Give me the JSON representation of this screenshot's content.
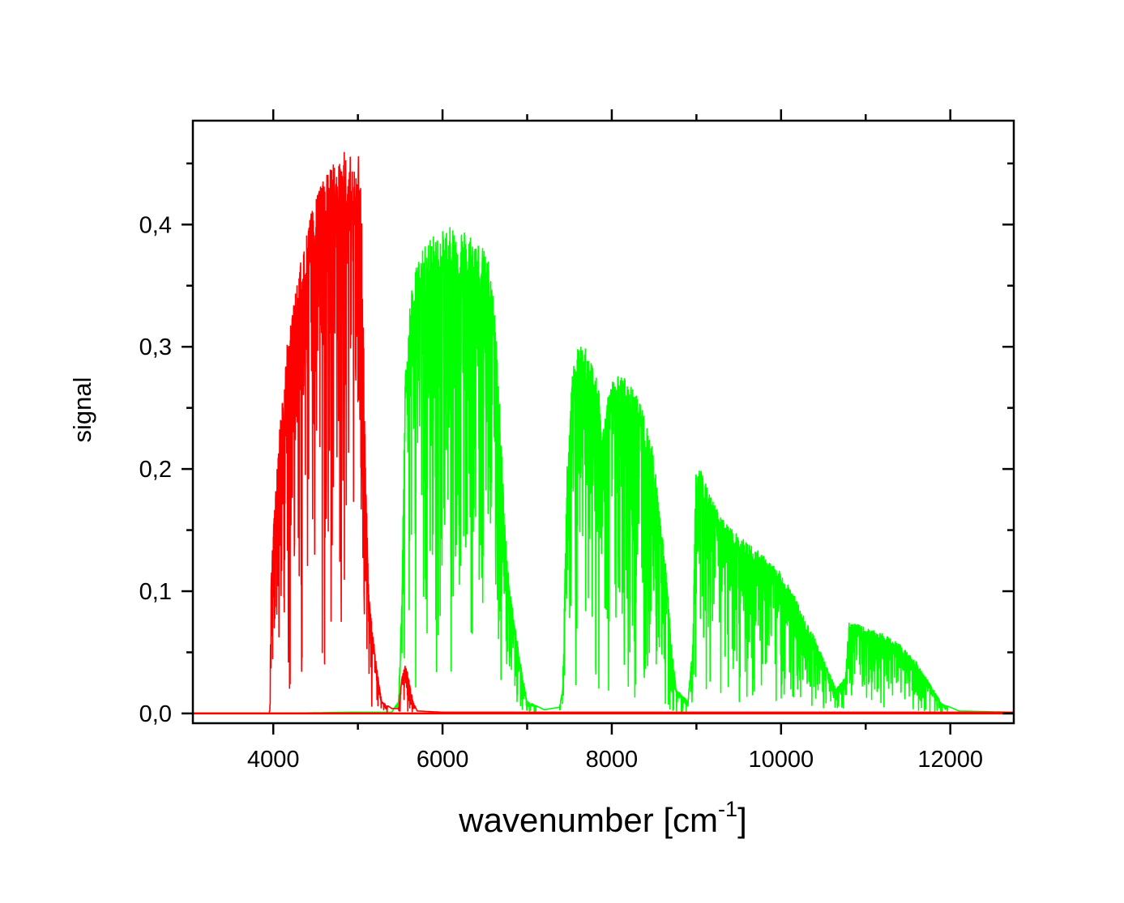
{
  "chart_data": {
    "type": "line",
    "xlabel": "wavenumber [cm",
    "xlabel_sup": "-1",
    "xlabel_close": "]",
    "ylabel": "signal",
    "xlim": [
      3050,
      12750
    ],
    "ylim": [
      -0.008,
      0.485
    ],
    "x_ticks": [
      4000,
      6000,
      8000,
      10000,
      12000
    ],
    "x_tick_labels": [
      "4000",
      "6000",
      "8000",
      "10000",
      "12000"
    ],
    "y_ticks": [
      0.0,
      0.1,
      0.2,
      0.3,
      0.4
    ],
    "y_tick_labels": [
      "0,0",
      "0,1",
      "0,2",
      "0,3",
      "0,4"
    ],
    "grid": false,
    "legend": "none",
    "series": [
      {
        "color": "#00ff00",
        "envelope": [
          [
            4000,
            0
          ],
          [
            4900,
            0.001
          ],
          [
            5400,
            0.001
          ],
          [
            5480,
            0.01
          ],
          [
            5520,
            0.1
          ],
          [
            5560,
            0.28
          ],
          [
            5620,
            0.34
          ],
          [
            5700,
            0.37
          ],
          [
            5850,
            0.39
          ],
          [
            6000,
            0.395
          ],
          [
            6150,
            0.4
          ],
          [
            6300,
            0.395
          ],
          [
            6450,
            0.385
          ],
          [
            6550,
            0.37
          ],
          [
            6620,
            0.33
          ],
          [
            6680,
            0.25
          ],
          [
            6740,
            0.15
          ],
          [
            6800,
            0.1
          ],
          [
            6900,
            0.05
          ],
          [
            7000,
            0.01
          ],
          [
            7200,
            0.003
          ],
          [
            7380,
            0.005
          ],
          [
            7420,
            0.02
          ],
          [
            7470,
            0.2
          ],
          [
            7540,
            0.285
          ],
          [
            7600,
            0.3
          ],
          [
            7700,
            0.3
          ],
          [
            7780,
            0.285
          ],
          [
            7850,
            0.265
          ],
          [
            7880,
            0.23
          ],
          [
            7920,
            0.25
          ],
          [
            7980,
            0.27
          ],
          [
            8050,
            0.277
          ],
          [
            8150,
            0.275
          ],
          [
            8300,
            0.26
          ],
          [
            8400,
            0.24
          ],
          [
            8480,
            0.22
          ],
          [
            8560,
            0.17
          ],
          [
            8640,
            0.12
          ],
          [
            8700,
            0.06
          ],
          [
            8760,
            0.02
          ],
          [
            8900,
            0.01
          ],
          [
            8960,
            0.06
          ],
          [
            8990,
            0.2
          ],
          [
            9050,
            0.2
          ],
          [
            9150,
            0.18
          ],
          [
            9300,
            0.16
          ],
          [
            9500,
            0.145
          ],
          [
            9700,
            0.135
          ],
          [
            9900,
            0.122
          ],
          [
            10000,
            0.115
          ],
          [
            10100,
            0.105
          ],
          [
            10200,
            0.09
          ],
          [
            10300,
            0.075
          ],
          [
            10400,
            0.062
          ],
          [
            10500,
            0.045
          ],
          [
            10650,
            0.02
          ],
          [
            10760,
            0.03
          ],
          [
            10800,
            0.075
          ],
          [
            10900,
            0.073
          ],
          [
            11000,
            0.07
          ],
          [
            11200,
            0.065
          ],
          [
            11400,
            0.057
          ],
          [
            11600,
            0.042
          ],
          [
            11750,
            0.025
          ],
          [
            11900,
            0.008
          ],
          [
            12100,
            0.002
          ],
          [
            12700,
            0.001
          ]
        ]
      },
      {
        "color": "#ff0000",
        "envelope": [
          [
            3950,
            0.001
          ],
          [
            3960,
            0.002
          ],
          [
            3975,
            0.11
          ],
          [
            4000,
            0.15
          ],
          [
            4080,
            0.24
          ],
          [
            4160,
            0.3
          ],
          [
            4250,
            0.34
          ],
          [
            4350,
            0.38
          ],
          [
            4450,
            0.41
          ],
          [
            4550,
            0.43
          ],
          [
            4650,
            0.445
          ],
          [
            4750,
            0.455
          ],
          [
            4850,
            0.46
          ],
          [
            4880,
            0.43
          ],
          [
            4900,
            0.462
          ],
          [
            4950,
            0.44
          ],
          [
            5000,
            0.462
          ],
          [
            5030,
            0.465
          ],
          [
            5060,
            0.35
          ],
          [
            5090,
            0.2
          ],
          [
            5130,
            0.1
          ],
          [
            5200,
            0.05
          ],
          [
            5280,
            0.01
          ],
          [
            5400,
            0.004
          ],
          [
            5480,
            0.004
          ],
          [
            5520,
            0.03
          ],
          [
            5560,
            0.041
          ],
          [
            5600,
            0.03
          ],
          [
            5650,
            0.01
          ],
          [
            5700,
            0.002
          ],
          [
            6000,
            0.001
          ],
          [
            12750,
            0.001
          ]
        ]
      }
    ]
  }
}
